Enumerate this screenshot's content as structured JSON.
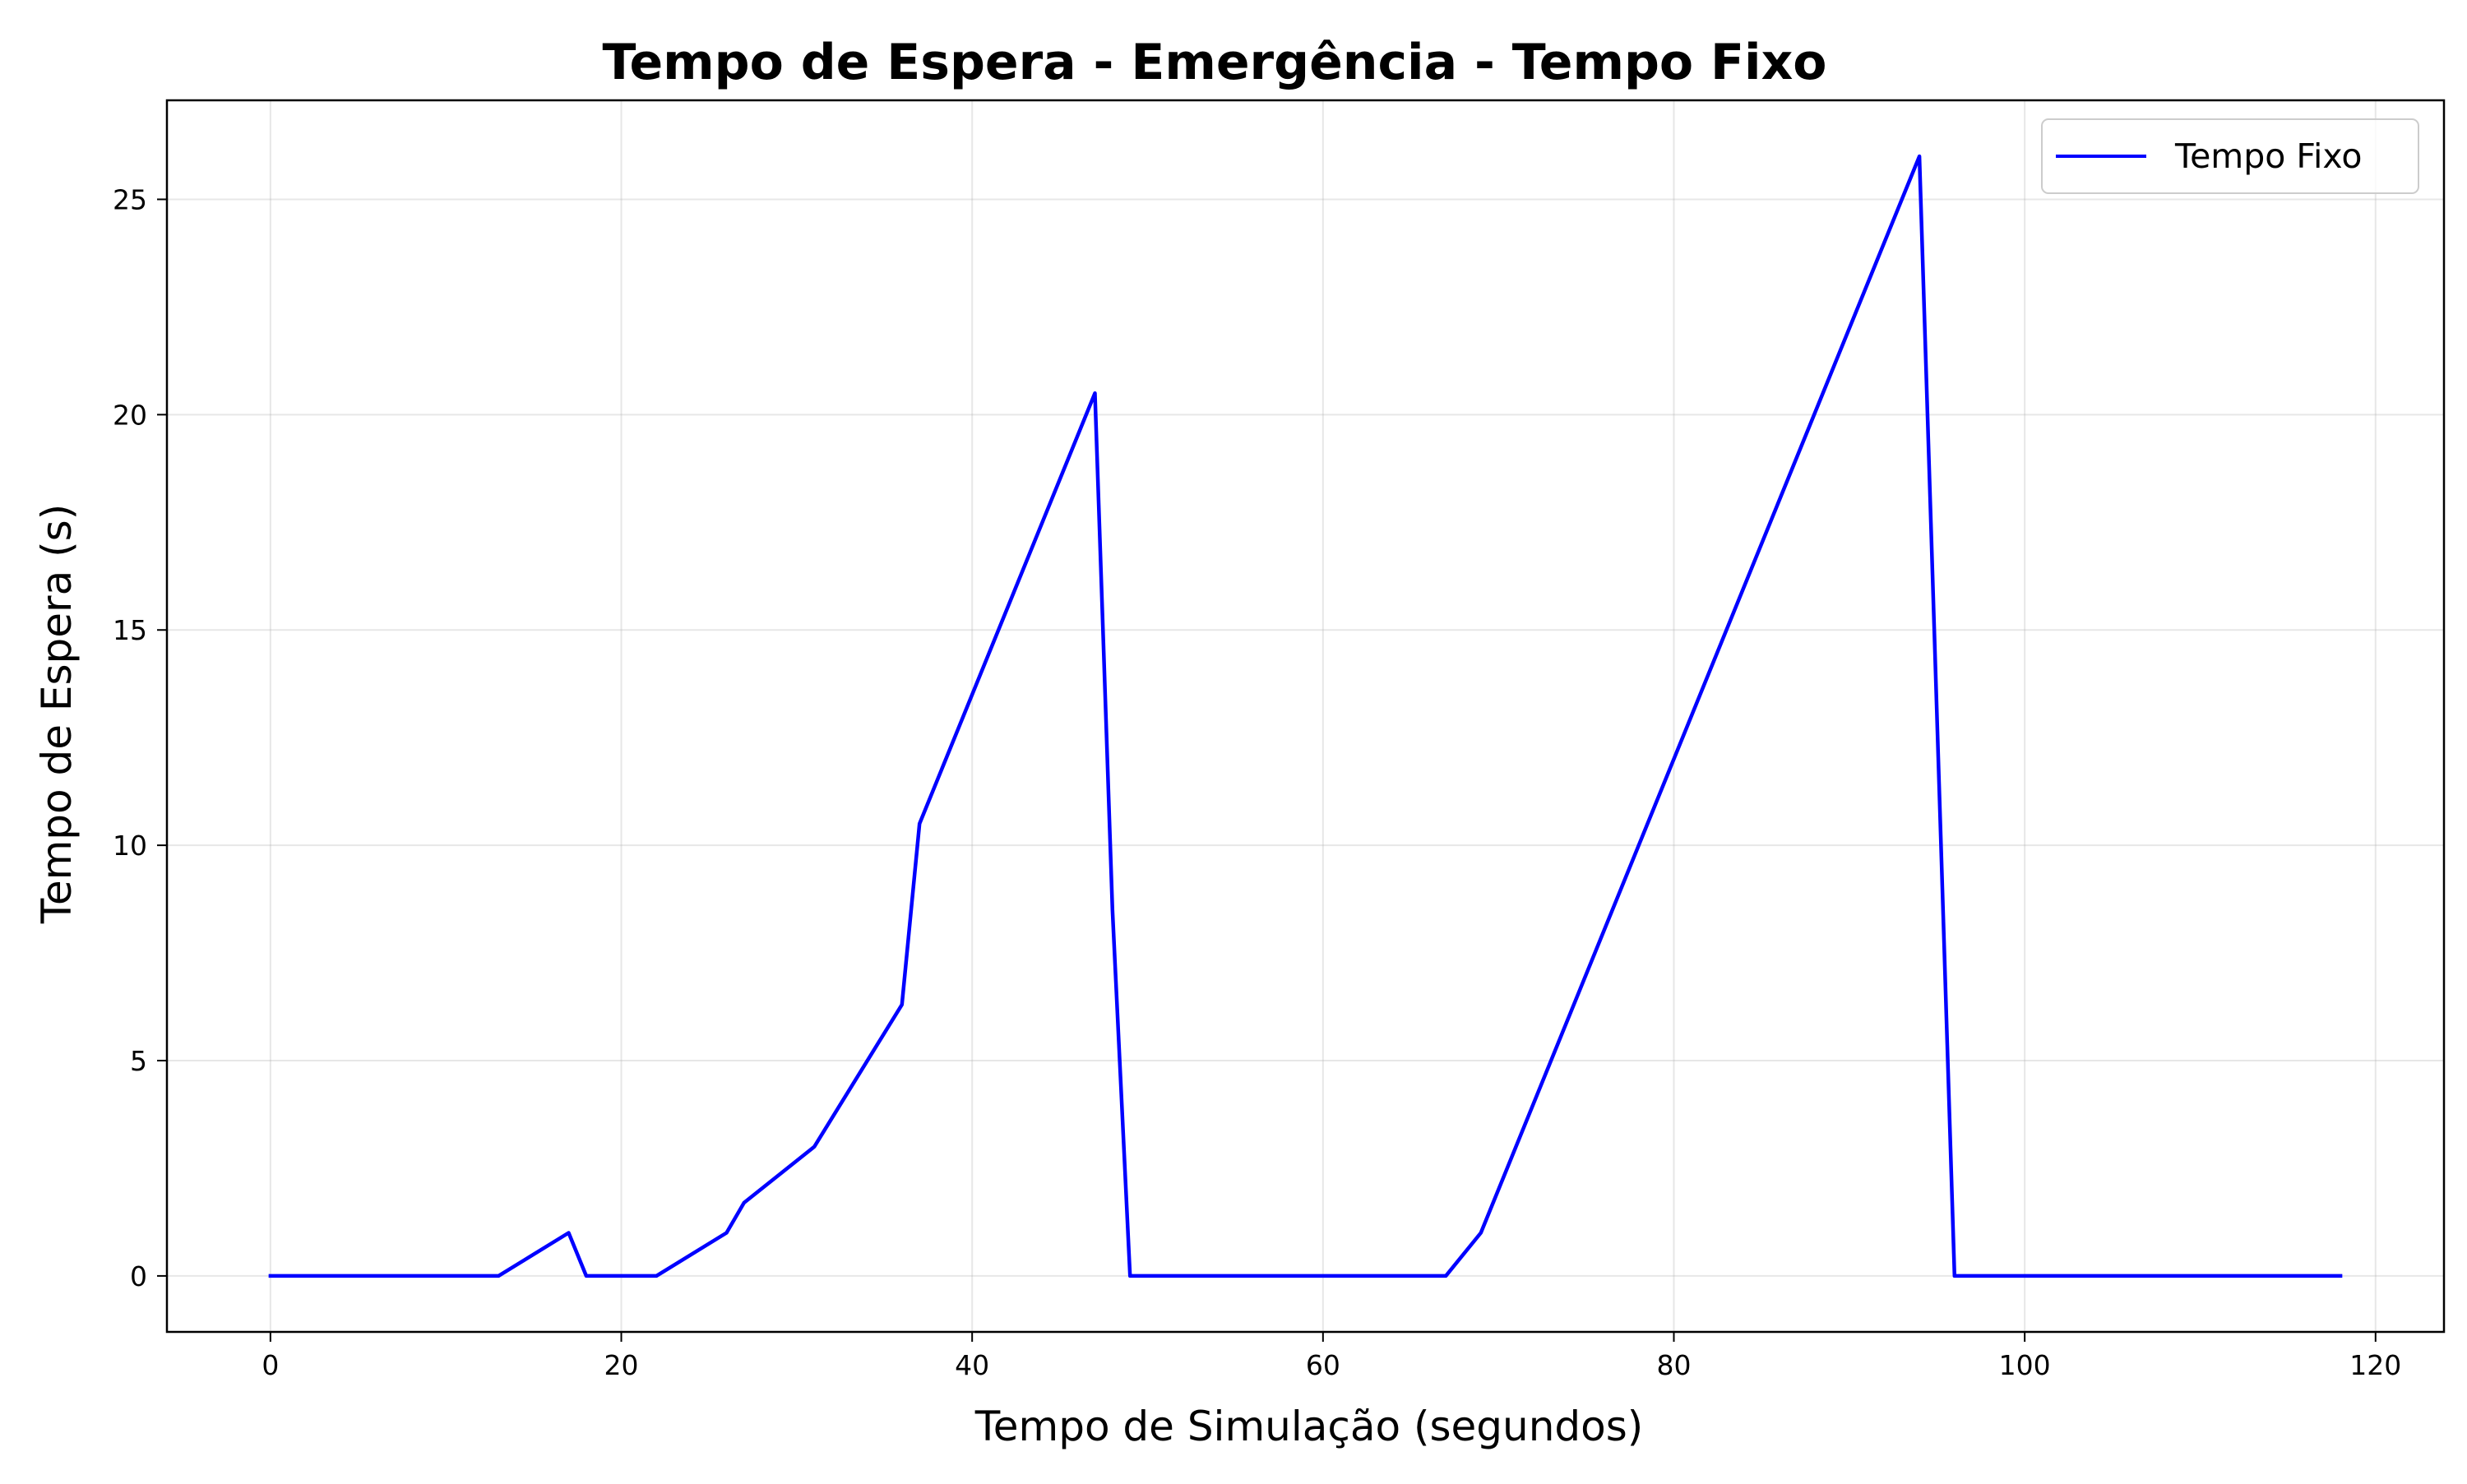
{
  "chart_data": {
    "type": "line",
    "title": "Tempo de Espera - Emergência - Tempo Fixo",
    "xlabel": "Tempo de Simulação (segundos)",
    "ylabel": "Tempo de Espera (s)",
    "xlim": [
      -5.9,
      123.9
    ],
    "ylim": [
      -1.3,
      27.3
    ],
    "xticks": [
      0,
      20,
      40,
      60,
      80,
      100,
      120
    ],
    "yticks": [
      0,
      5,
      10,
      15,
      20,
      25
    ],
    "grid": true,
    "legend_position": "top-right",
    "series": [
      {
        "name": "Tempo Fixo",
        "color": "#0000ff",
        "x": [
          0,
          13,
          17,
          18,
          22,
          26,
          27,
          31,
          36,
          37,
          47,
          48,
          49,
          67,
          69,
          94,
          96,
          118
        ],
        "y": [
          0,
          0,
          1,
          0,
          0,
          1,
          1.7,
          3,
          6.3,
          10.5,
          20.5,
          8.5,
          0,
          0,
          1,
          26,
          0,
          0
        ]
      }
    ]
  }
}
